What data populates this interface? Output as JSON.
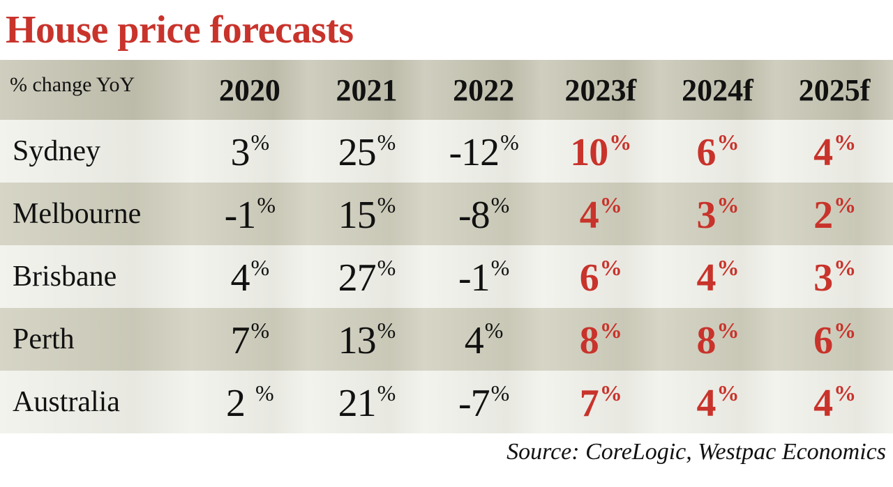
{
  "title": "House price forecasts",
  "source": "Source: CoreLogic, Westpac Economics",
  "colors": {
    "title": "#c8332b",
    "forecast": "#c8332b",
    "actual": "#111111",
    "header_band": "#bcbba9",
    "odd_band": "#c9c8b7",
    "light_band": "#e8e8e1"
  },
  "chart_data": {
    "type": "table",
    "title": "House price forecasts",
    "header_label": "% change YoY",
    "columns": [
      {
        "label": "2020",
        "forecast": false
      },
      {
        "label": "2021",
        "forecast": false
      },
      {
        "label": "2022",
        "forecast": false
      },
      {
        "label": "2023f",
        "forecast": true
      },
      {
        "label": "2024f",
        "forecast": true
      },
      {
        "label": "2025f",
        "forecast": true
      }
    ],
    "rows": [
      {
        "label": "Sydney",
        "values": [
          "3",
          "25",
          "-12",
          "10",
          "6",
          "4"
        ]
      },
      {
        "label": "Melbourne",
        "values": [
          "-1",
          "15",
          "-8",
          "4",
          "3",
          "2"
        ]
      },
      {
        "label": "Brisbane",
        "values": [
          "4",
          "27",
          "-1",
          "6",
          "4",
          "3"
        ]
      },
      {
        "label": "Perth",
        "values": [
          "7",
          "13",
          "4",
          "8",
          "8",
          "6"
        ]
      },
      {
        "label": "Australia",
        "values": [
          "2 ",
          "21",
          "-7",
          "7",
          "4",
          "4"
        ]
      }
    ],
    "unit": "%",
    "source": "Source: CoreLogic, Westpac Economics"
  }
}
